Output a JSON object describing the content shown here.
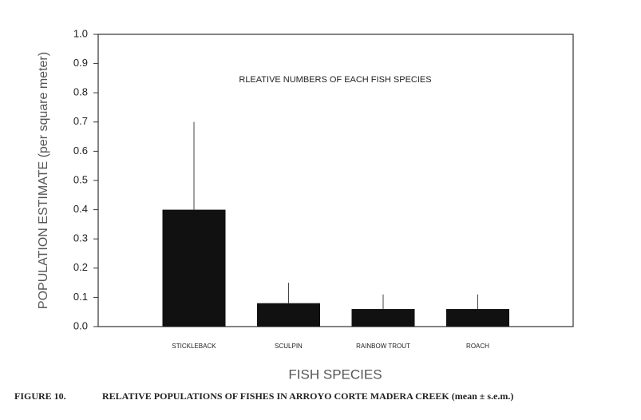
{
  "chart_data": {
    "type": "bar",
    "annotation": "RLEATIVE NUMBERS OF EACH FISH SPECIES",
    "y_label": "POPULATION ESTIMATE (per square meter)",
    "x_label": "FISH SPECIES",
    "figure_label": "FIGURE 10.",
    "caption": "RELATIVE POPULATIONS OF FISHES IN ARROYO CORTE MADERA CREEK (mean ±  s.e.m.)",
    "categories": [
      "STICKLEBACK",
      "SCULPIN",
      "RAINBOW TROUT",
      "ROACH"
    ],
    "values": [
      0.4,
      0.08,
      0.06,
      0.06
    ],
    "errors": [
      0.3,
      0.07,
      0.05,
      0.05
    ],
    "color": "#111111",
    "ylim": [
      0,
      1
    ],
    "yticks": [
      {
        "value": 0,
        "label": "0.0"
      },
      0.1,
      0.2,
      0.3,
      0.4,
      0.5,
      0.6,
      0.7,
      0.8,
      0.9,
      {
        "value": 1,
        "label": "1.0"
      }
    ],
    "grid": false
  }
}
